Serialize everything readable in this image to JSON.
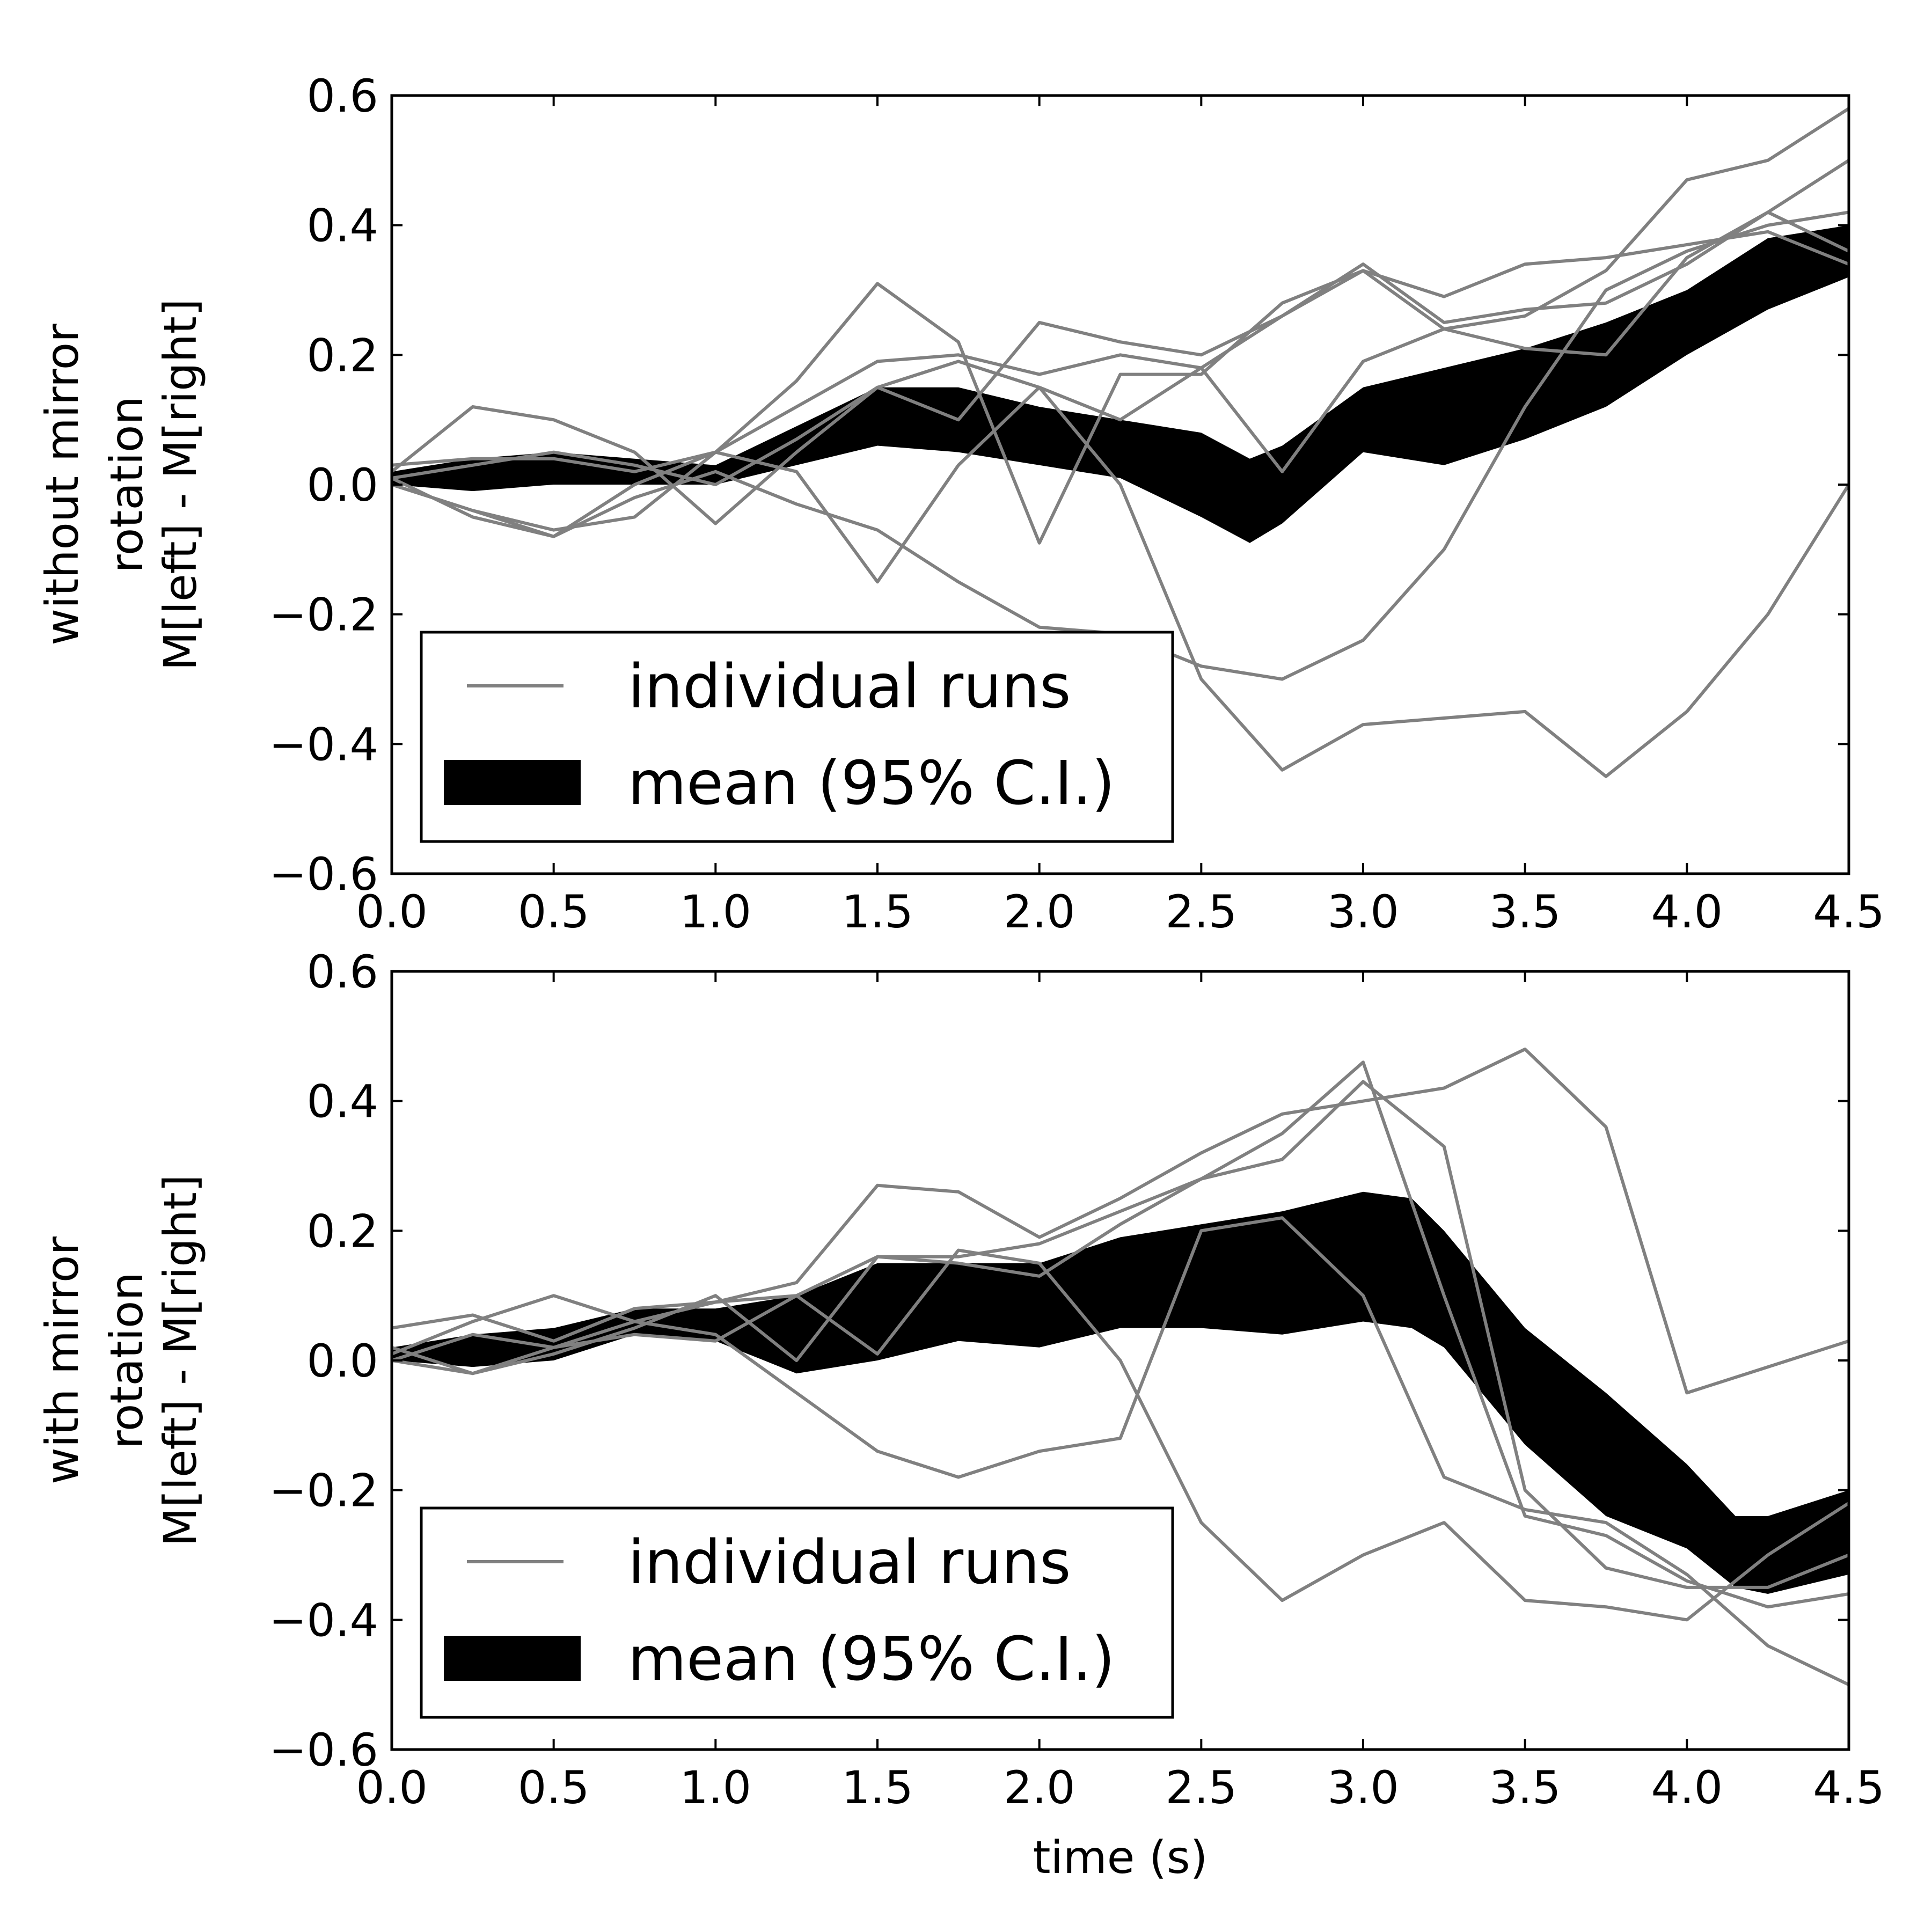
{
  "chart_data": [
    {
      "type": "line",
      "ylabel_lines": [
        "without mirror",
        "rotation",
        "M[left] - M[right]"
      ],
      "xlabel": "",
      "xlim": [
        0.0,
        4.5
      ],
      "ylim": [
        -0.6,
        0.6
      ],
      "xticks": [
        "0.0",
        "0.5",
        "1.0",
        "1.5",
        "2.0",
        "2.5",
        "3.0",
        "3.5",
        "4.0",
        "4.5"
      ],
      "yticks": [
        "−0.6",
        "−0.4",
        "−0.2",
        "0.0",
        "0.2",
        "0.4",
        "0.6"
      ],
      "ytick_values": [
        -0.6,
        -0.4,
        -0.2,
        0.0,
        0.2,
        0.4,
        0.6
      ],
      "grid": false,
      "legend": {
        "position": "lower-left",
        "entries": [
          {
            "label": "individual runs",
            "style": "line",
            "color": "#808080"
          },
          {
            "label": "mean (95% C.I.)",
            "style": "band",
            "color": "#000000"
          }
        ]
      },
      "line_color": "#808080",
      "band_color": "#000000",
      "band": {
        "x": [
          0.0,
          0.25,
          0.5,
          0.75,
          1.0,
          1.25,
          1.5,
          1.75,
          2.0,
          2.25,
          2.5,
          2.65,
          2.75,
          3.0,
          3.25,
          3.5,
          3.75,
          4.0,
          4.25,
          4.5
        ],
        "upper": [
          0.02,
          0.04,
          0.05,
          0.04,
          0.03,
          0.09,
          0.15,
          0.15,
          0.12,
          0.1,
          0.08,
          0.04,
          0.06,
          0.15,
          0.18,
          0.21,
          0.25,
          0.3,
          0.38,
          0.4
        ],
        "lower": [
          0.0,
          -0.01,
          0.0,
          0.0,
          0.0,
          0.03,
          0.06,
          0.05,
          0.03,
          0.01,
          -0.05,
          -0.09,
          -0.06,
          0.05,
          0.03,
          0.07,
          0.12,
          0.2,
          0.27,
          0.32
        ]
      },
      "runs": [
        {
          "x": [
            0.0,
            0.25,
            0.5,
            0.75,
            1.0,
            1.25,
            1.5,
            1.75,
            2.0,
            2.25,
            2.5,
            2.75,
            3.0,
            3.25,
            3.5,
            3.75,
            4.0,
            4.25,
            4.5
          ],
          "y": [
            0.03,
            0.04,
            0.04,
            0.02,
            0.05,
            0.12,
            0.19,
            0.2,
            0.17,
            0.2,
            0.18,
            0.26,
            0.33,
            0.29,
            0.34,
            0.35,
            0.37,
            0.39,
            0.34
          ]
        },
        {
          "x": [
            0.0,
            0.25,
            0.5,
            0.75,
            1.0,
            1.25,
            1.5,
            1.75,
            2.0,
            2.25,
            2.5,
            2.75,
            3.0,
            3.25,
            3.5,
            3.75,
            4.0,
            4.25,
            4.5
          ],
          "y": [
            0.01,
            0.03,
            0.05,
            0.03,
            0.0,
            0.07,
            0.15,
            0.1,
            0.25,
            0.22,
            0.2,
            0.26,
            0.34,
            0.25,
            0.27,
            0.28,
            0.34,
            0.42,
            0.5
          ]
        },
        {
          "x": [
            0.0,
            0.25,
            0.5,
            0.75,
            1.0,
            1.25,
            1.5,
            1.75,
            2.0,
            2.25,
            2.5,
            2.75,
            3.0,
            3.25,
            3.5,
            3.75,
            4.0,
            4.25,
            4.5
          ],
          "y": [
            0.0,
            -0.04,
            -0.08,
            0.0,
            0.05,
            0.16,
            0.31,
            0.22,
            -0.09,
            0.17,
            0.17,
            0.28,
            0.33,
            0.24,
            0.21,
            0.2,
            0.35,
            0.42,
            0.36
          ]
        },
        {
          "x": [
            0.0,
            0.25,
            0.5,
            0.75,
            1.0,
            1.25,
            1.5,
            1.75,
            2.0,
            2.25,
            2.5,
            2.75,
            3.0,
            3.25,
            3.5,
            3.75,
            4.0,
            4.25,
            4.5
          ],
          "y": [
            0.02,
            0.12,
            0.1,
            0.05,
            -0.06,
            0.05,
            0.15,
            0.19,
            0.15,
            0.1,
            0.18,
            0.02,
            0.19,
            0.24,
            0.26,
            0.33,
            0.47,
            0.5,
            0.58
          ]
        },
        {
          "x": [
            0.0,
            0.25,
            0.5,
            0.75,
            1.0,
            1.25,
            1.5,
            1.75,
            2.0,
            2.25,
            2.5,
            2.75,
            3.0,
            3.25,
            3.5,
            3.75,
            4.0,
            4.25,
            4.5
          ],
          "y": [
            0.0,
            -0.04,
            -0.07,
            -0.05,
            0.05,
            0.02,
            -0.15,
            0.03,
            0.15,
            0.0,
            -0.3,
            -0.44,
            -0.37,
            -0.36,
            -0.35,
            -0.45,
            -0.35,
            -0.2,
            0.0
          ]
        },
        {
          "x": [
            0.0,
            0.25,
            0.5,
            0.75,
            1.0,
            1.25,
            1.5,
            1.75,
            2.0,
            2.25,
            2.5,
            2.75,
            3.0,
            3.25,
            3.5,
            3.75,
            4.0,
            4.25,
            4.5
          ],
          "y": [
            0.01,
            -0.05,
            -0.08,
            -0.02,
            0.02,
            -0.03,
            -0.07,
            -0.15,
            -0.22,
            -0.23,
            -0.28,
            -0.3,
            -0.24,
            -0.1,
            0.12,
            0.3,
            0.36,
            0.4,
            0.42
          ]
        }
      ]
    },
    {
      "type": "line",
      "ylabel_lines": [
        "with mirror",
        "rotation",
        "M[left] - M[right]"
      ],
      "xlabel": "time (s)",
      "xlim": [
        0.0,
        4.5
      ],
      "ylim": [
        -0.6,
        0.6
      ],
      "xticks": [
        "0.0",
        "0.5",
        "1.0",
        "1.5",
        "2.0",
        "2.5",
        "3.0",
        "3.5",
        "4.0",
        "4.5"
      ],
      "yticks": [
        "−0.6",
        "−0.4",
        "−0.2",
        "0.0",
        "0.2",
        "0.4",
        "0.6"
      ],
      "ytick_values": [
        -0.6,
        -0.4,
        -0.2,
        0.0,
        0.2,
        0.4,
        0.6
      ],
      "grid": false,
      "legend": {
        "position": "lower-left",
        "entries": [
          {
            "label": "individual runs",
            "style": "line",
            "color": "#808080"
          },
          {
            "label": "mean (95% C.I.)",
            "style": "band",
            "color": "#000000"
          }
        ]
      },
      "line_color": "#808080",
      "band_color": "#000000",
      "band": {
        "x": [
          0.0,
          0.25,
          0.5,
          0.75,
          1.0,
          1.25,
          1.5,
          1.75,
          2.0,
          2.25,
          2.5,
          2.75,
          3.0,
          3.15,
          3.25,
          3.5,
          3.75,
          4.0,
          4.15,
          4.25,
          4.5
        ],
        "upper": [
          0.02,
          0.04,
          0.05,
          0.08,
          0.08,
          0.1,
          0.15,
          0.15,
          0.15,
          0.19,
          0.21,
          0.23,
          0.26,
          0.25,
          0.2,
          0.05,
          -0.05,
          -0.16,
          -0.24,
          -0.24,
          -0.2
        ],
        "lower": [
          0.0,
          -0.01,
          0.0,
          0.04,
          0.03,
          -0.02,
          0.0,
          0.03,
          0.02,
          0.05,
          0.05,
          0.04,
          0.06,
          0.05,
          0.02,
          -0.13,
          -0.24,
          -0.29,
          -0.35,
          -0.36,
          -0.33
        ]
      },
      "runs": [
        {
          "x": [
            0.0,
            0.25,
            0.5,
            0.75,
            1.0,
            1.25,
            1.5,
            1.75,
            2.0,
            2.25,
            2.5,
            2.75,
            3.0,
            3.25,
            3.5,
            3.75,
            4.0,
            4.25,
            4.5
          ],
          "y": [
            0.05,
            0.07,
            0.03,
            0.08,
            0.09,
            0.12,
            0.27,
            0.26,
            0.19,
            0.25,
            0.32,
            0.38,
            0.4,
            0.42,
            0.48,
            0.36,
            -0.05,
            -0.01,
            0.03
          ]
        },
        {
          "x": [
            0.0,
            0.25,
            0.5,
            0.75,
            1.0,
            1.25,
            1.5,
            1.75,
            2.0,
            2.25,
            2.5,
            2.75,
            3.0,
            3.25,
            3.5,
            3.75,
            4.0,
            4.25,
            4.5
          ],
          "y": [
            0.01,
            0.06,
            0.1,
            0.06,
            0.09,
            0.1,
            0.16,
            0.16,
            0.18,
            0.23,
            0.28,
            0.35,
            0.46,
            0.1,
            -0.24,
            -0.27,
            -0.34,
            -0.38,
            -0.36
          ]
        },
        {
          "x": [
            0.0,
            0.25,
            0.5,
            0.75,
            1.0,
            1.25,
            1.5,
            1.75,
            2.0,
            2.25,
            2.5,
            2.75,
            3.0,
            3.25,
            3.5,
            3.75,
            4.0,
            4.25,
            4.5
          ],
          "y": [
            0.0,
            0.04,
            0.02,
            0.06,
            0.04,
            -0.05,
            -0.14,
            -0.18,
            -0.14,
            -0.12,
            0.2,
            0.22,
            0.1,
            -0.18,
            -0.23,
            -0.25,
            -0.33,
            -0.44,
            -0.5
          ]
        },
        {
          "x": [
            0.0,
            0.25,
            0.5,
            0.75,
            1.0,
            1.25,
            1.5,
            1.75,
            2.0,
            2.25,
            2.5,
            2.75,
            3.0,
            3.25,
            3.5,
            3.75,
            4.0,
            4.25,
            4.5
          ],
          "y": [
            0.0,
            -0.02,
            0.02,
            0.04,
            0.03,
            0.1,
            0.01,
            0.17,
            0.15,
            0.0,
            -0.25,
            -0.37,
            -0.3,
            -0.25,
            -0.37,
            -0.38,
            -0.4,
            -0.3,
            -0.22
          ]
        },
        {
          "x": [
            0.0,
            0.25,
            0.5,
            0.75,
            1.0,
            1.25,
            1.5,
            1.75,
            2.0,
            2.25,
            2.5,
            2.75,
            3.0,
            3.25,
            3.5,
            3.75,
            4.0,
            4.25,
            4.5
          ],
          "y": [
            0.02,
            -0.02,
            0.01,
            0.05,
            0.1,
            0.0,
            0.16,
            0.15,
            0.13,
            0.21,
            0.28,
            0.31,
            0.43,
            0.33,
            -0.2,
            -0.32,
            -0.35,
            -0.35,
            -0.3
          ]
        }
      ]
    }
  ]
}
